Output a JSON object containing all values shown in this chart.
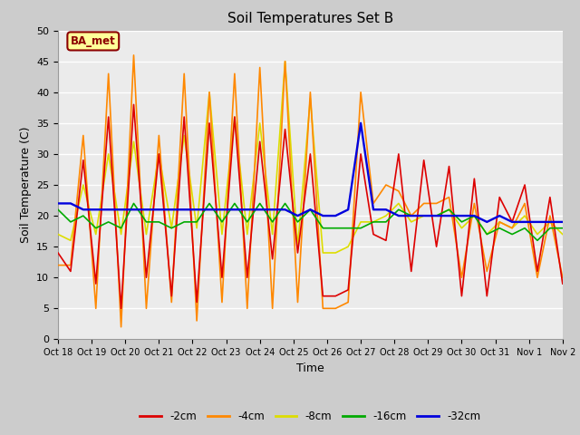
{
  "title": "Soil Temperatures Set B",
  "xlabel": "Time",
  "ylabel": "Soil Temperature (C)",
  "ylim": [
    0,
    50
  ],
  "yticks": [
    0,
    5,
    10,
    15,
    20,
    25,
    30,
    35,
    40,
    45,
    50
  ],
  "xtick_labels": [
    "Oct 18",
    "Oct 19",
    "Oct 20",
    "Oct 21",
    "Oct 22",
    "Oct 23",
    "Oct 24",
    "Oct 25",
    "Oct 26",
    "Oct 27",
    "Oct 28",
    "Oct 29",
    "Oct 30",
    "Oct 31",
    "Nov 1",
    "Nov 2"
  ],
  "annotation_text": "BA_met",
  "line_colors": {
    "2cm": "#dd0000",
    "4cm": "#ff8800",
    "8cm": "#dddd00",
    "16cm": "#00aa00",
    "32cm": "#0000dd"
  },
  "t_2cm": [
    14,
    11,
    29,
    9,
    36,
    5,
    38,
    10,
    30,
    7,
    36,
    6,
    35,
    10,
    36,
    10,
    32,
    13,
    34,
    14,
    30,
    7,
    7,
    8,
    30,
    17,
    16,
    30,
    11,
    29,
    15,
    28,
    7,
    26,
    7,
    23,
    19,
    25,
    11,
    23,
    9
  ],
  "t_4cm": [
    12,
    12,
    33,
    5,
    43,
    2,
    46,
    5,
    33,
    6,
    43,
    3,
    40,
    6,
    43,
    5,
    44,
    5,
    45,
    6,
    40,
    5,
    5,
    6,
    40,
    22,
    25,
    24,
    20,
    22,
    22,
    23,
    10,
    22,
    11,
    19,
    18,
    22,
    10,
    20,
    10
  ],
  "t_8cm": [
    17,
    16,
    25,
    17,
    30,
    17,
    32,
    17,
    30,
    18,
    33,
    18,
    40,
    17,
    36,
    17,
    35,
    17,
    45,
    15,
    39,
    14,
    14,
    15,
    19,
    19,
    20,
    22,
    19,
    20,
    20,
    21,
    18,
    20,
    17,
    19,
    18,
    20,
    17,
    19,
    17
  ],
  "t_16cm": [
    21,
    19,
    20,
    18,
    19,
    18,
    22,
    19,
    19,
    18,
    19,
    19,
    22,
    19,
    22,
    19,
    22,
    19,
    22,
    19,
    21,
    18,
    18,
    18,
    18,
    19,
    19,
    21,
    20,
    20,
    20,
    21,
    19,
    20,
    17,
    18,
    17,
    18,
    16,
    18,
    18
  ],
  "t_32cm": [
    22,
    22,
    21,
    21,
    21,
    21,
    21,
    21,
    21,
    21,
    21,
    21,
    21,
    21,
    21,
    21,
    21,
    21,
    21,
    20,
    21,
    20,
    20,
    21,
    35,
    21,
    21,
    20,
    20,
    20,
    20,
    20,
    20,
    20,
    19,
    20,
    19,
    19,
    19,
    19,
    19
  ]
}
